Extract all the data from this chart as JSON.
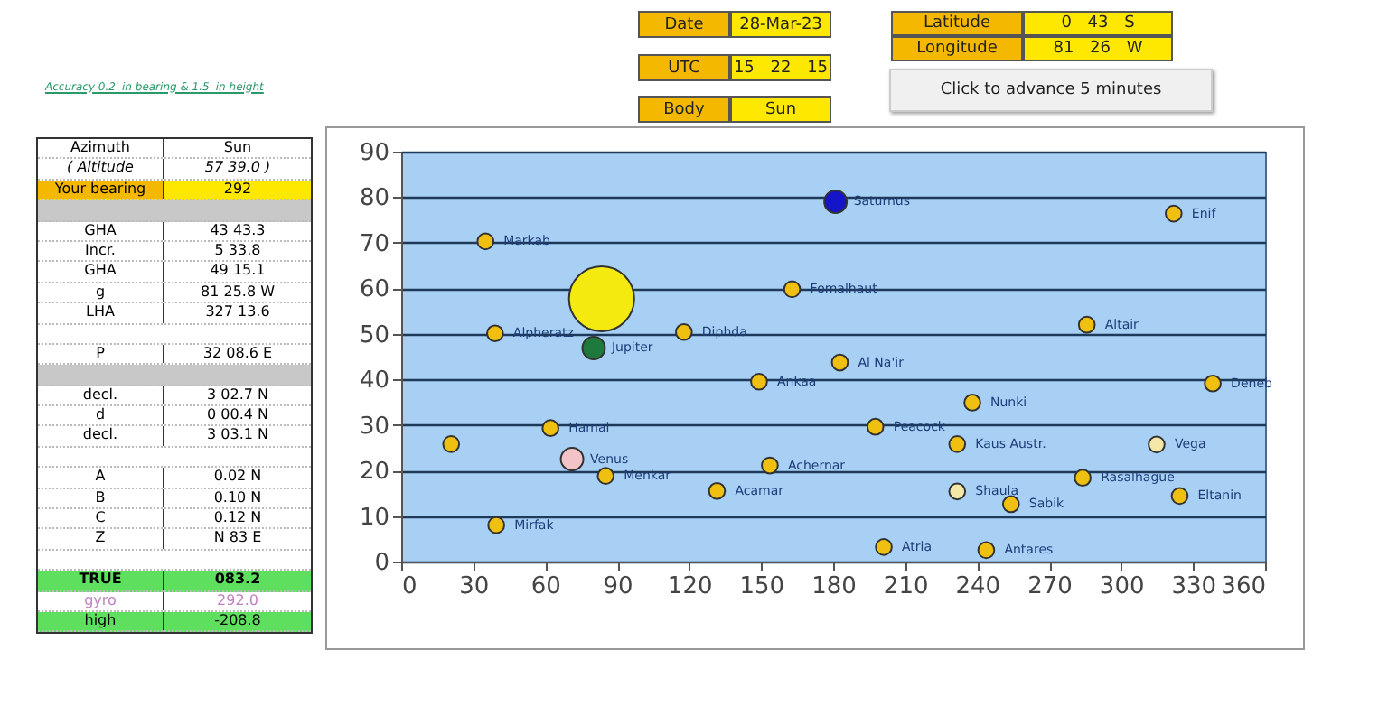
{
  "chart_data": [
    {
      "type": "other",
      "annotations": [
        "Date",
        "28-Mar-23",
        "UTC",
        "15 22 15",
        "Body",
        "Sun",
        "Latitude",
        "0 43 S",
        "Longitude",
        "81 26 W",
        "Click to advance 5 minutes",
        "Accuracy 0.2' in bearing & 1.5' in height"
      ]
    },
    {
      "type": "other",
      "annotations": [
        "Azimuth",
        "Sun",
        "( Altitude",
        "57 39.0 )",
        "Your bearing",
        "292",
        "GHA",
        "43 43.3",
        "Incr.",
        "5 33.8",
        "GHA",
        "49 15.1",
        "g",
        "81 25.8 W",
        "LHA",
        "327 13.6",
        "P",
        "32 08.6 E",
        "decl.",
        "3 02.7 N",
        "d",
        "0 00.4 N",
        "decl.",
        "3 03.1 N",
        "A",
        "0.02 N",
        "B",
        "0.10 N",
        "C",
        "0.12 N",
        "Z",
        "N 83 E",
        "TRUE",
        "083.2",
        "gyro",
        "292.0",
        "high",
        "-208.8"
      ]
    },
    {
      "type": "bubble",
      "xlim": [
        0,
        360
      ],
      "ylim": [
        0,
        90
      ],
      "xticks": [
        0,
        30,
        60,
        90,
        120,
        150,
        180,
        210,
        240,
        270,
        300,
        330,
        360
      ],
      "yticks": [
        0,
        10,
        20,
        30,
        40,
        50,
        60,
        70,
        80,
        90
      ],
      "grid": "y",
      "marker": "circle",
      "series": [
        {
          "name": "Markab",
          "color": "#f0c010",
          "x": [
            35.1
          ],
          "values": [
            70.3
          ],
          "sizes": [
            0.06
          ]
        },
        {
          "name": "Alpheratz",
          "color": "#f0c010",
          "x": [
            39.1
          ],
          "values": [
            50.1
          ],
          "sizes": [
            0.06
          ]
        },
        {
          "name": null,
          "color": "#f0c010",
          "x": [
            20.8
          ],
          "values": [
            25.8
          ],
          "sizes": [
            0.06
          ]
        },
        {
          "name": "Hamal",
          "color": "#f0c010",
          "x": [
            62.2
          ],
          "values": [
            29.3
          ],
          "sizes": [
            0.06
          ]
        },
        {
          "name": "Venus",
          "color": "#f2c4c8",
          "x": [
            71.2
          ],
          "values": [
            22.5
          ],
          "sizes": [
            0.12
          ]
        },
        {
          "name": "Menkar",
          "color": "#f0c010",
          "x": [
            85.2
          ],
          "values": [
            18.8
          ],
          "sizes": [
            0.06
          ]
        },
        {
          "name": "Mirfak",
          "color": "#f0c010",
          "x": [
            39.6
          ],
          "values": [
            8.0
          ],
          "sizes": [
            0.06
          ]
        },
        {
          "name": null,
          "color": "#f5ea10",
          "x": [
            83.5
          ],
          "values": [
            57.7
          ],
          "sizes": [
            1
          ]
        },
        {
          "name": "Jupiter",
          "color": "#1e7a3c",
          "x": [
            80.2
          ],
          "values": [
            46.9
          ],
          "sizes": [
            0.12
          ]
        },
        {
          "name": "Diphda",
          "color": "#f0c010",
          "x": [
            117.8
          ],
          "values": [
            50.4
          ],
          "sizes": [
            0.06
          ]
        },
        {
          "name": "Fomalhaut",
          "color": "#f0c010",
          "x": [
            162.9
          ],
          "values": [
            59.8
          ],
          "sizes": [
            0.06
          ]
        },
        {
          "name": "Saturnus",
          "color": "#1414c8",
          "x": [
            181
          ],
          "values": [
            79.0
          ],
          "sizes": [
            0.12
          ]
        },
        {
          "name": "Ankaa",
          "color": "#f0c010",
          "x": [
            149.1
          ],
          "values": [
            39.5
          ],
          "sizes": [
            0.06
          ]
        },
        {
          "name": "Achernar",
          "color": "#f0c010",
          "x": [
            153.6
          ],
          "values": [
            21.1
          ],
          "sizes": [
            0.06
          ]
        },
        {
          "name": "Acamar",
          "color": "#f0c010",
          "x": [
            131.6
          ],
          "values": [
            15.5
          ],
          "sizes": [
            0.06
          ]
        },
        {
          "name": "Al Na'ir",
          "color": "#f0c010",
          "x": [
            182.8
          ],
          "values": [
            43.7
          ],
          "sizes": [
            0.06
          ]
        },
        {
          "name": "Peacock",
          "color": "#f0c010",
          "x": [
            197.6
          ],
          "values": [
            29.6
          ],
          "sizes": [
            0.06
          ]
        },
        {
          "name": "Atria",
          "color": "#f0c010",
          "x": [
            201.1
          ],
          "values": [
            3.2
          ],
          "sizes": [
            0.06
          ]
        },
        {
          "name": "Nunki",
          "color": "#f0c010",
          "x": [
            238
          ],
          "values": [
            34.9
          ],
          "sizes": [
            0.06
          ]
        },
        {
          "name": "Kaus Austr.",
          "color": "#f0c010",
          "x": [
            231.7
          ],
          "values": [
            25.8
          ],
          "sizes": [
            0.06
          ]
        },
        {
          "name": "Shaula",
          "color": "#f3e8a8",
          "x": [
            231.7
          ],
          "values": [
            15.4
          ],
          "sizes": [
            0.06
          ]
        },
        {
          "name": "Sabik",
          "color": "#f0c010",
          "x": [
            254.1
          ],
          "values": [
            12.6
          ],
          "sizes": [
            0.06
          ]
        },
        {
          "name": "Antares",
          "color": "#f0c010",
          "x": [
            243.8
          ],
          "values": [
            2.5
          ],
          "sizes": [
            0.06
          ]
        },
        {
          "name": "Altair",
          "color": "#f0c010",
          "x": [
            285.7
          ],
          "values": [
            52.0
          ],
          "sizes": [
            0.06
          ]
        },
        {
          "name": "Rasalhague",
          "color": "#f0c010",
          "x": [
            284
          ],
          "values": [
            18.4
          ],
          "sizes": [
            0.06
          ]
        },
        {
          "name": "Enif",
          "color": "#f0c010",
          "x": [
            321.9
          ],
          "values": [
            76.4
          ],
          "sizes": [
            0.06
          ]
        },
        {
          "name": "Deneb",
          "color": "#f0c010",
          "x": [
            338.2
          ],
          "values": [
            39.1
          ],
          "sizes": [
            0.06
          ]
        },
        {
          "name": "Vega",
          "color": "#f3e8a8",
          "x": [
            314.8
          ],
          "values": [
            25.7
          ],
          "sizes": [
            0.06
          ]
        },
        {
          "name": "Eltanin",
          "color": "#f0c010",
          "x": [
            324.4
          ],
          "values": [
            14.4
          ],
          "sizes": [
            0.06
          ]
        }
      ]
    }
  ]
}
